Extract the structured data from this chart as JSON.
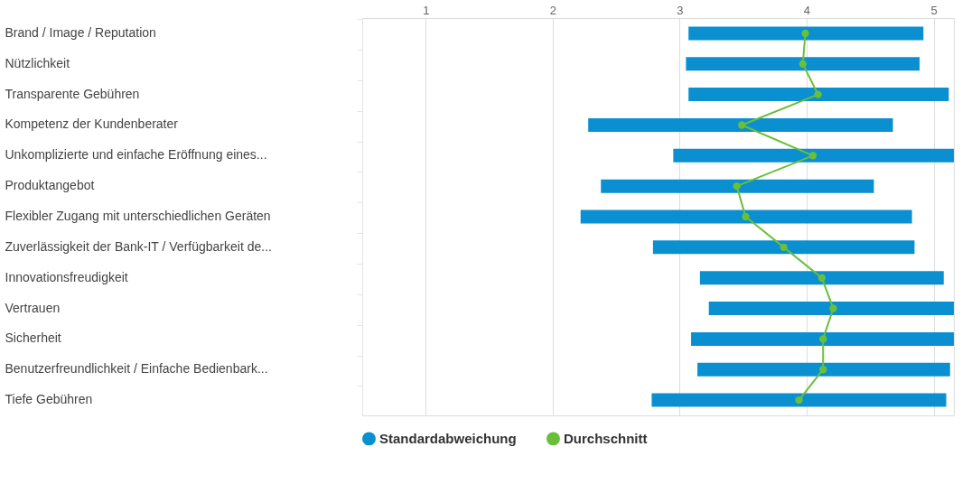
{
  "chart_data": {
    "type": "bar",
    "orientation": "horizontal",
    "categories": [
      "Brand / Image / Reputation",
      "Nützlichkeit",
      "Transparente Gebühren",
      "Kompetenz der Kundenberater",
      "Unkomplizierte und einfache Eröffnung eines...",
      "Produktangebot",
      "Flexibler Zugang mit unterschiedlichen Geräten",
      "Zuverlässigkeit der Bank-IT / Verfügbarkeit de...",
      "Innovationsfreudigkeit",
      "Vertrauen",
      "Sicherheit",
      "Benutzerfreundlichkeit / Einfache Bedienbark...",
      "Tiefe Gebühren"
    ],
    "series": [
      {
        "name": "Standardabweichung",
        "type": "bar",
        "color": "#0a8fd0",
        "base": [
          3.07,
          3.05,
          3.07,
          2.28,
          2.95,
          2.38,
          2.22,
          2.79,
          3.16,
          3.23,
          3.09,
          3.14,
          2.78
        ],
        "values": [
          1.85,
          1.84,
          2.05,
          2.4,
          2.21,
          2.15,
          2.61,
          2.06,
          1.92,
          1.93,
          2.07,
          1.99,
          2.32
        ]
      },
      {
        "name": "Durchschnitt",
        "type": "line",
        "color": "#6abf3a",
        "values": [
          3.99,
          3.97,
          4.09,
          3.49,
          4.05,
          3.45,
          3.52,
          3.82,
          4.12,
          4.21,
          4.13,
          4.13,
          3.94
        ]
      }
    ],
    "xlim": [
      0.5,
      5.16
    ],
    "xticks": [
      1,
      2,
      3,
      4,
      5
    ],
    "grid": "x",
    "legend": "bottom",
    "marker": "circle",
    "line_style": "solid"
  }
}
